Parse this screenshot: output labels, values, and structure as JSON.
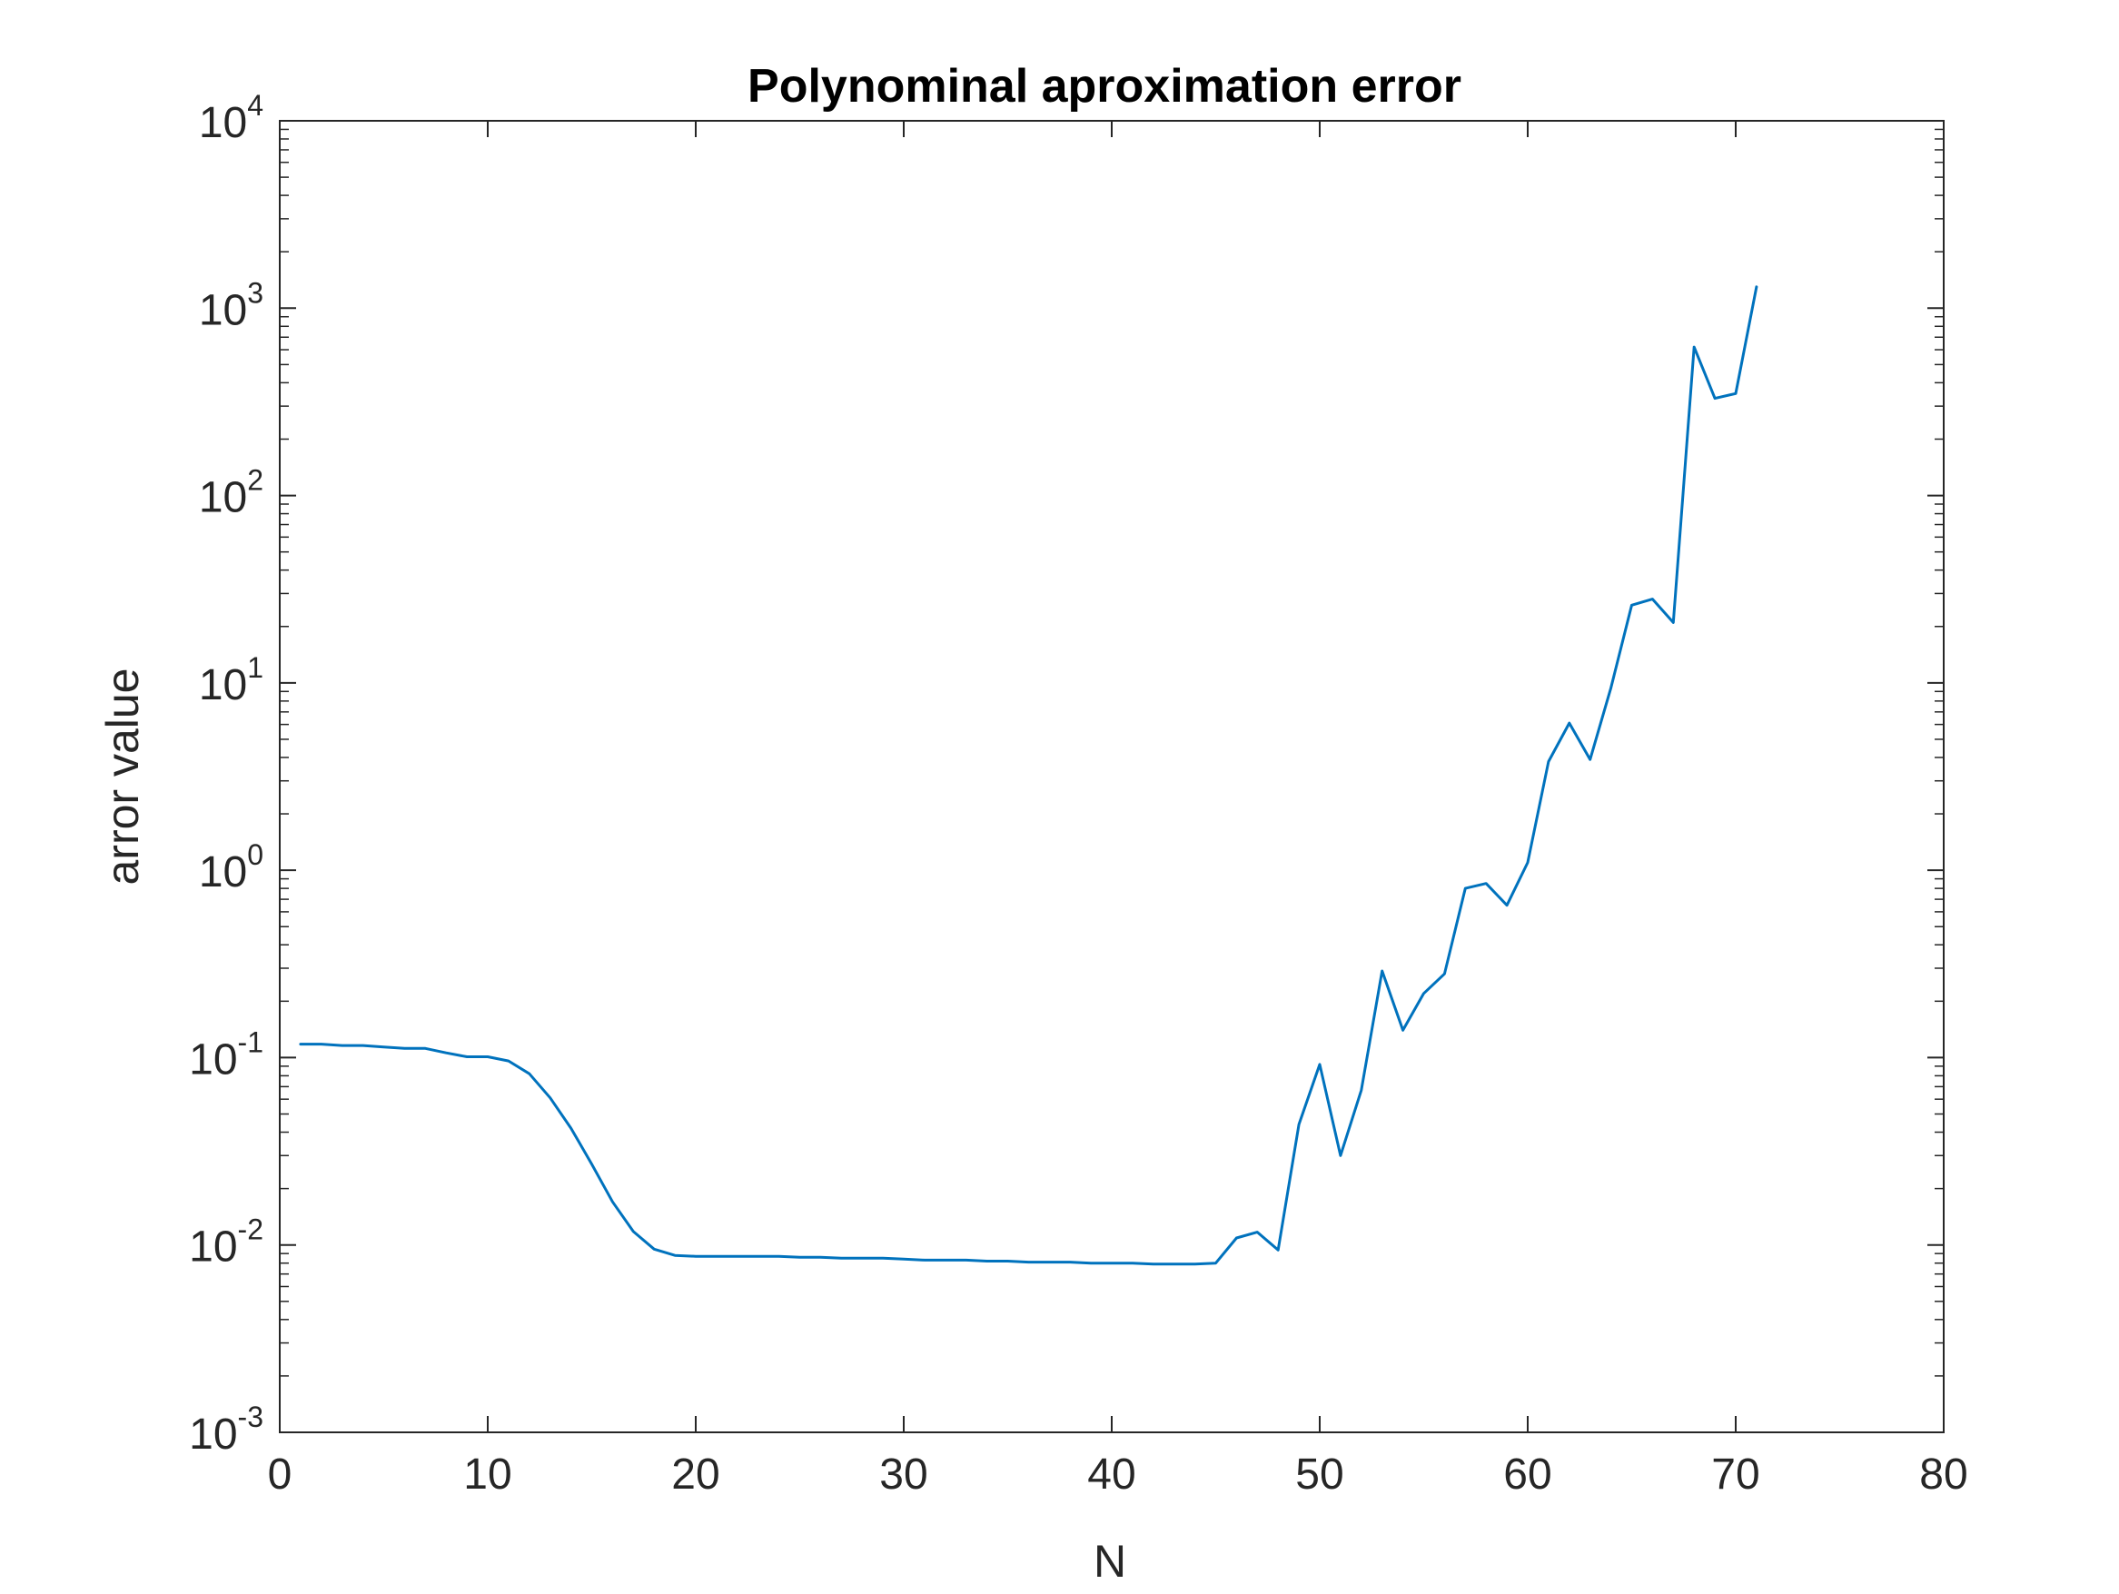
{
  "chart_data": {
    "type": "line",
    "title": "Polynominal aproximation error",
    "xlabel": "N",
    "ylabel": "arror value",
    "xlim": [
      0,
      80
    ],
    "ylim": [
      0.001,
      10000
    ],
    "yscale": "log",
    "x_ticks": [
      "0",
      "10",
      "20",
      "30",
      "40",
      "50",
      "60",
      "70",
      "80"
    ],
    "y_ticks": [
      {
        "base": "10",
        "exp": "-3"
      },
      {
        "base": "10",
        "exp": "-2"
      },
      {
        "base": "10",
        "exp": "-1"
      },
      {
        "base": "10",
        "exp": "0"
      },
      {
        "base": "10",
        "exp": "1"
      },
      {
        "base": "10",
        "exp": "2"
      },
      {
        "base": "10",
        "exp": "3"
      },
      {
        "base": "10",
        "exp": "4"
      }
    ],
    "grid": false,
    "box": true,
    "line_color": "#0072BD",
    "axis_color": "#262626",
    "series": [
      {
        "x": [
          1,
          2,
          3,
          4,
          5,
          6,
          7,
          8,
          9,
          10,
          11,
          12,
          13,
          14,
          15,
          16,
          17,
          18,
          19,
          20,
          21,
          22,
          23,
          24,
          25,
          26,
          27,
          28,
          29,
          30,
          31,
          32,
          33,
          34,
          35,
          36,
          37,
          38,
          39,
          40,
          41,
          42,
          43,
          44,
          45,
          46,
          47,
          48,
          49,
          50,
          51,
          52,
          53,
          54,
          55,
          56,
          57,
          58,
          59,
          60,
          61,
          62,
          63,
          64,
          65,
          66,
          67,
          68,
          69,
          70,
          71
        ],
        "values": [
          0.118,
          0.118,
          0.116,
          0.116,
          0.114,
          0.112,
          0.112,
          0.106,
          0.101,
          0.101,
          0.096,
          0.082,
          0.061,
          0.042,
          0.027,
          0.017,
          0.0118,
          0.0095,
          0.0088,
          0.0087,
          0.0087,
          0.0087,
          0.0087,
          0.0087,
          0.0086,
          0.0086,
          0.0085,
          0.0085,
          0.0085,
          0.0084,
          0.0083,
          0.0083,
          0.0083,
          0.0082,
          0.0082,
          0.0081,
          0.0081,
          0.0081,
          0.008,
          0.008,
          0.008,
          0.0079,
          0.0079,
          0.0079,
          0.008,
          0.0109,
          0.0117,
          0.0094,
          0.044,
          0.092,
          0.03,
          0.067,
          0.29,
          0.14,
          0.22,
          0.28,
          0.8,
          0.85,
          0.65,
          1.1,
          3.8,
          6.1,
          3.9,
          9.4,
          26,
          28,
          21,
          620,
          330,
          350,
          1300
        ]
      }
    ]
  }
}
